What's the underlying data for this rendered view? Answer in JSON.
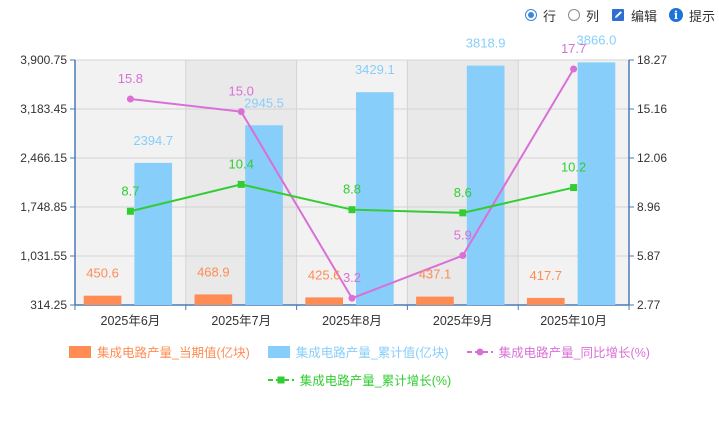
{
  "toolbar": {
    "row_label": "行",
    "col_label": "列",
    "edit_label": "编辑",
    "hint_label": "提示",
    "selected": "row"
  },
  "colors": {
    "bar_current": "#ff8c55",
    "bar_cumulative": "#87cefa",
    "line_yoy": "#da70d6",
    "line_cum_growth": "#32cd32",
    "label_current": "#ff8c55",
    "label_cumulative": "#87cefa",
    "label_yoy": "#da70d6",
    "label_cum_growth": "#32cd32"
  },
  "chart_data": {
    "type": "bar",
    "categories": [
      "2025年6月",
      "2025年7月",
      "2025年8月",
      "2025年9月",
      "2025年10月"
    ],
    "series": [
      {
        "name": "集成电路产量_当期值(亿块)",
        "type": "bar",
        "axis": "left",
        "values": [
          450.6,
          468.9,
          425.6,
          437.1,
          417.7
        ]
      },
      {
        "name": "集成电路产量_累计值(亿块)",
        "type": "bar",
        "axis": "left",
        "values": [
          2394.7,
          2945.5,
          3429.1,
          3818.9,
          3866.0
        ]
      },
      {
        "name": "集成电路产量_同比增长(%)",
        "type": "line",
        "axis": "right",
        "values": [
          15.8,
          15.0,
          3.2,
          5.9,
          17.7
        ]
      },
      {
        "name": "集成电路产量_累计增长(%)",
        "type": "line",
        "axis": "right",
        "values": [
          8.7,
          10.4,
          8.8,
          8.6,
          10.2
        ]
      }
    ],
    "y_left": {
      "ticks": [
        "314.25",
        "1,031.55",
        "1,748.85",
        "2,466.15",
        "3,183.45",
        "3,900.75"
      ],
      "ylim": [
        314.25,
        3900.75
      ]
    },
    "y_right": {
      "ticks": [
        "2.77",
        "5.87",
        "8.96",
        "12.06",
        "15.16",
        "18.27"
      ],
      "ylim": [
        2.77,
        18.27
      ]
    },
    "grid": true,
    "legend_position": "bottom"
  }
}
